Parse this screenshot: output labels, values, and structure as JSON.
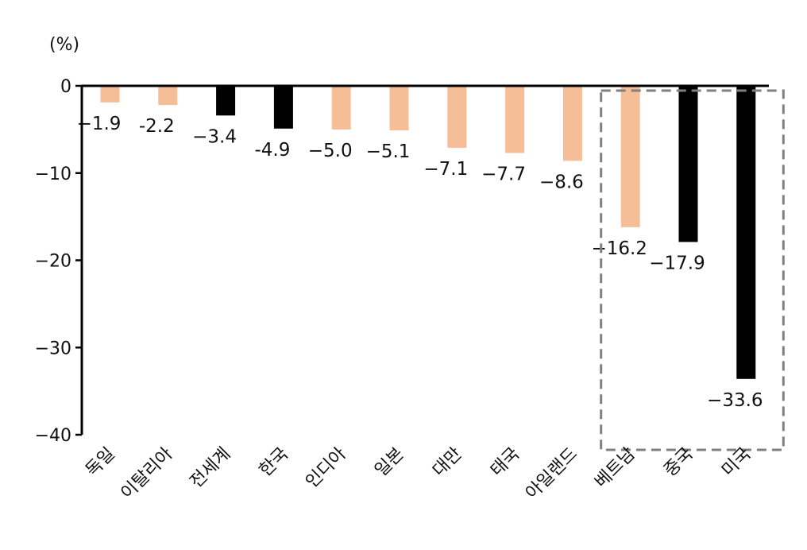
{
  "chart_data": {
    "type": "bar",
    "unit_label": "(%)",
    "categories": [
      "독일",
      "이탈리아",
      "전세계",
      "한국",
      "인디아",
      "일본",
      "대만",
      "태국",
      "아일랜드",
      "베트남",
      "중국",
      "미국"
    ],
    "values": [
      -1.9,
      -2.2,
      -3.4,
      -4.9,
      -5.0,
      -5.1,
      -7.1,
      -7.7,
      -8.6,
      -16.2,
      -17.9,
      -33.6
    ],
    "value_labels": [
      "−1.9",
      "-2.2",
      "−3.4",
      "-4.9",
      "−5.0",
      "−5.1",
      "−7.1",
      "−7.7",
      "−8.6",
      "−16.2",
      "−17.9",
      "−33.6"
    ],
    "highlight": [
      false,
      false,
      true,
      true,
      false,
      false,
      false,
      false,
      false,
      false,
      true,
      true
    ],
    "ylim": [
      -40,
      0
    ],
    "yticks": [
      0,
      -10,
      -20,
      -30,
      -40
    ],
    "ytick_labels": [
      "0",
      "−10",
      "−20",
      "−30",
      "−40"
    ],
    "boxed_categories": [
      "베트남",
      "중국",
      "미국"
    ],
    "colors": {
      "default_bar": "#F5BE96",
      "highlight_bar": "#000000",
      "axis": "#000000",
      "box": "#808080"
    },
    "grid": false,
    "legend": "none"
  }
}
